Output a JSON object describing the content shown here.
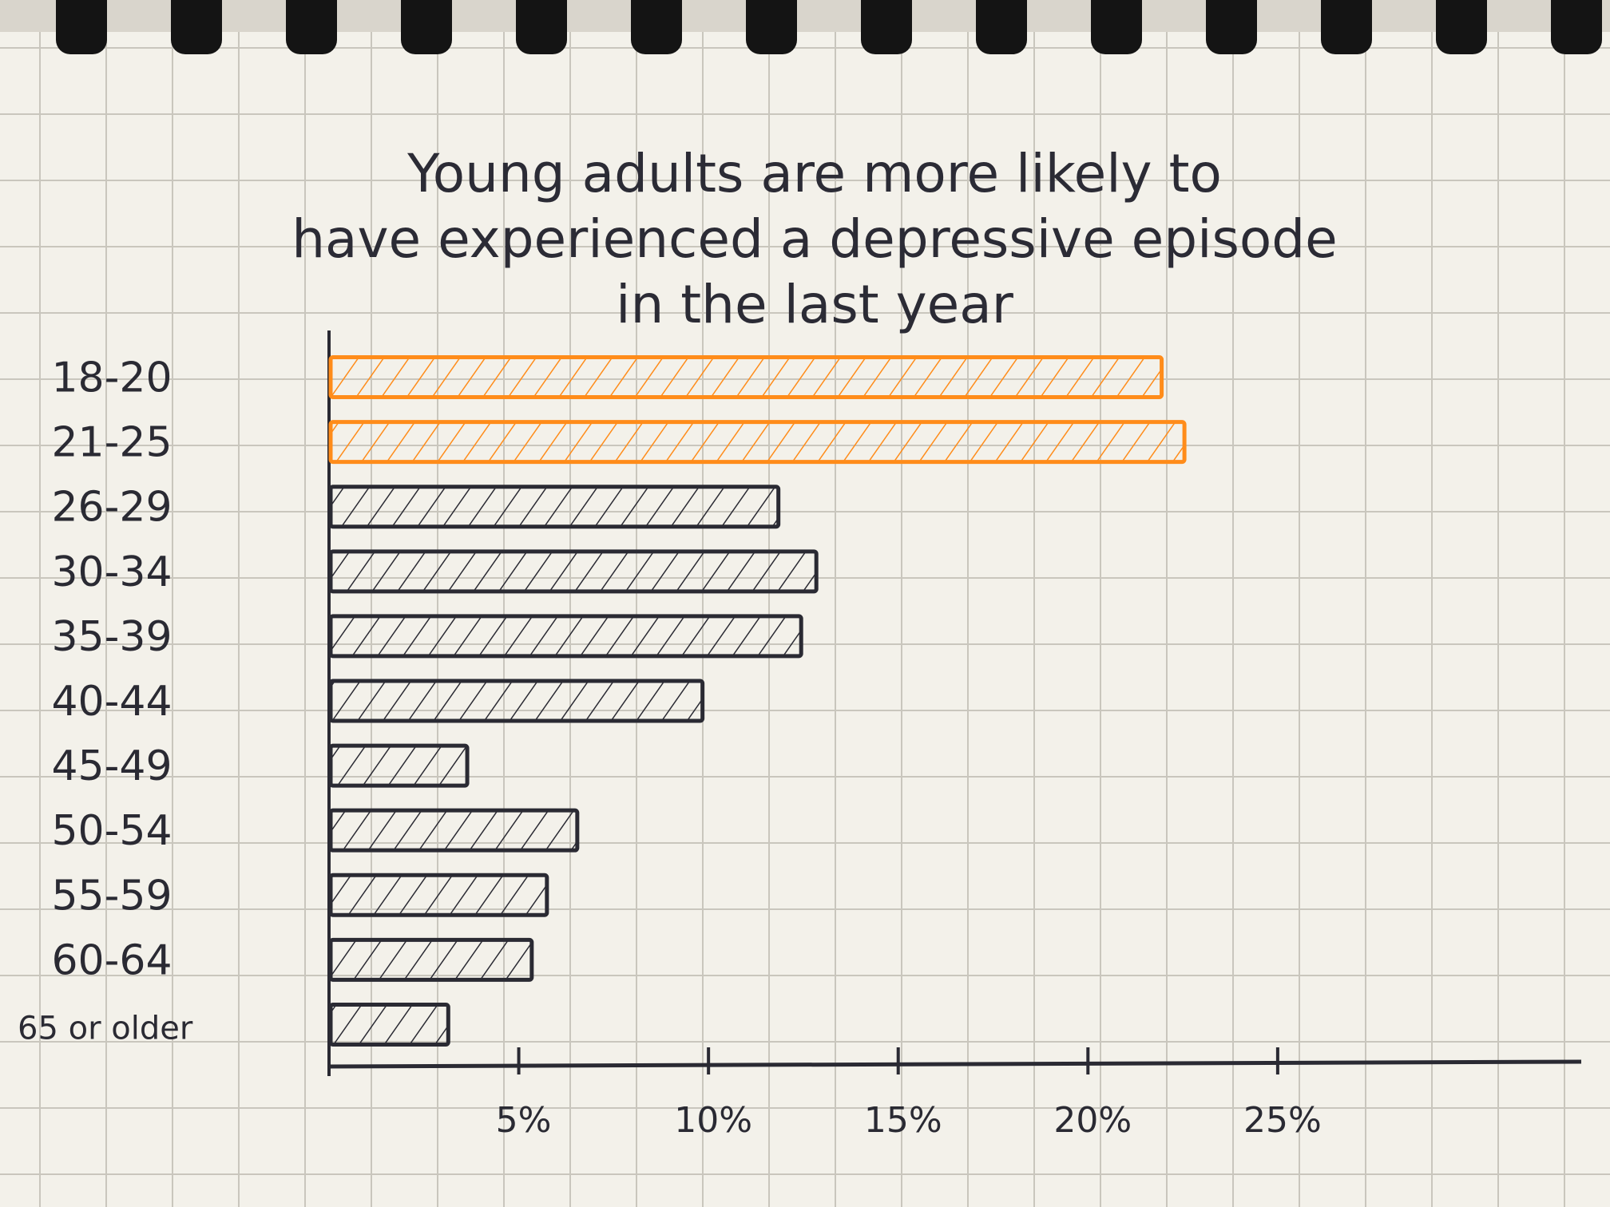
{
  "chart_data": {
    "type": "bar",
    "orientation": "horizontal",
    "title_lines": [
      "Young adults are more likely to",
      "have experienced a depressive episode",
      "in the last year"
    ],
    "categories": [
      "18-20",
      "21-25",
      "26-29",
      "30-34",
      "35-39",
      "40-44",
      "45-49",
      "50-54",
      "55-59",
      "60-64",
      "65 or older"
    ],
    "values": [
      21.9,
      22.5,
      11.8,
      12.8,
      12.4,
      9.8,
      3.6,
      6.5,
      5.7,
      5.3,
      3.1
    ],
    "highlighted": [
      0,
      1
    ],
    "x_ticks": [
      5,
      10,
      15,
      20,
      25
    ],
    "x_tick_labels": [
      "5%",
      "10%",
      "15%",
      "20%",
      "25%"
    ],
    "xlim": [
      0,
      33
    ],
    "xlabel": "",
    "ylabel": "",
    "grid": true,
    "colors": {
      "highlight": "#ff8c1a",
      "bar": "#2a2a33",
      "paper": "#f3f1ea",
      "grid_line": "#c9c6bd",
      "spiral": "#141414"
    }
  }
}
